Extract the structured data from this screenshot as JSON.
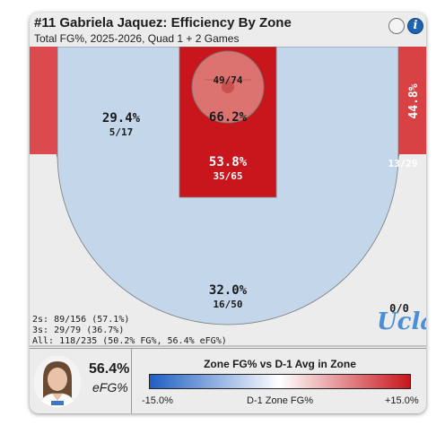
{
  "header": {
    "title": "#11 Gabriela Jaquez: Efficiency By Zone",
    "subtitle": "Total FG%, 2025-2026, Quad 1 + 2 Games"
  },
  "icons": {
    "options": "empty-circle-icon",
    "info": "info-icon",
    "info_glyph": "i"
  },
  "colors": {
    "left_corner": "#db4a4c",
    "right_corner": "#d94244",
    "paint": "#c8161c",
    "restricted": "#dd7370",
    "midrange": "#c3d6ea",
    "above_break_three": "#ecd6d6",
    "deep": "#ececec",
    "accent_logo": "#4d8fd6"
  },
  "chart_data": {
    "type": "heatmap",
    "zones": [
      {
        "id": "restricted-area",
        "pct": "66.2%",
        "made_att": "49/74",
        "made": 49,
        "attempts": 74
      },
      {
        "id": "paint",
        "pct": "53.8%",
        "made_att": "35/65",
        "made": 35,
        "attempts": 65
      },
      {
        "id": "midrange",
        "pct": "29.4%",
        "made_att": "5/17",
        "made": 5,
        "attempts": 17
      },
      {
        "id": "right-corner-three",
        "pct": "44.8%",
        "made_att": "13/29",
        "made": 13,
        "attempts": 29
      },
      {
        "id": "left-corner-three",
        "pct": "",
        "made_att": "",
        "made": 0,
        "attempts": 0
      },
      {
        "id": "above-break-three",
        "pct": "32.0%",
        "made_att": "16/50",
        "made": 16,
        "attempts": 50
      },
      {
        "id": "deep-three",
        "pct": "",
        "made_att": "0/0",
        "made": 0,
        "attempts": 0
      }
    ],
    "totals": [
      "2s: 89/156 (57.1%)",
      "3s: 29/79 (36.7%)",
      "All: 118/235 (50.2% FG%, 56.4% eFG%)"
    ],
    "legend": {
      "title": "Zone FG% vs D-1 Avg in Zone",
      "min_label": "-15.0%",
      "mid_label": "D-1 Zone FG%",
      "max_label": "+15.0%",
      "min": -15.0,
      "max": 15.0,
      "colors": [
        "#1f5fc4",
        "#ffffff",
        "#c8161c"
      ]
    }
  },
  "logo_text": "Ucla",
  "player": {
    "efg_value": "56.4%",
    "efg_label": "eFG%"
  }
}
